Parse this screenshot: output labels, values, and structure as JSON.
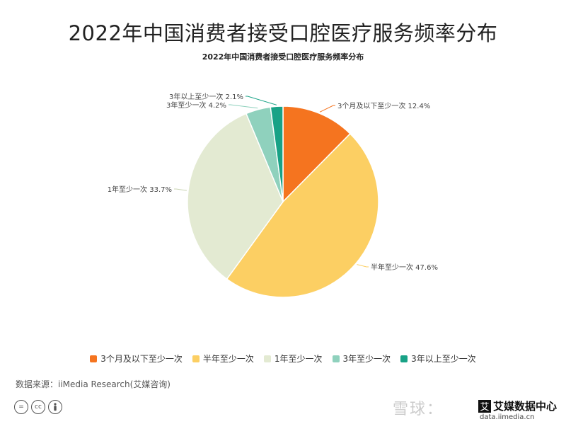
{
  "header": {
    "title": "2022年中国消费者接受口腔医疗服务频率分布"
  },
  "chart_data": {
    "type": "pie",
    "title": "2022年中国消费者接受口腔医疗服务频率分布",
    "categories": [
      "3个月及以下至少一次",
      "半年至少一次",
      "1年至少一次",
      "3年至少一次",
      "3年以上至少一次"
    ],
    "values": [
      12.4,
      47.6,
      33.7,
      4.2,
      2.1
    ],
    "unit": "%",
    "colors": [
      "#f5741f",
      "#fccf63",
      "#e3ead2",
      "#8fd1bd",
      "#18a286"
    ],
    "data_labels": [
      "3个月及以下至少一次 12.4%",
      "半年至少一次 47.6%",
      "1年至少一次 33.7%",
      "3年至少一次 4.2%",
      "3年以上至少一次 2.1%"
    ],
    "legend_position": "bottom"
  },
  "footer": {
    "source": "数据来源：iiMedia Research(艾媒咨询)",
    "license_icons": [
      "=",
      "cc",
      "person-icon"
    ],
    "watermark": "雪球：",
    "logo_text": "艾媒数据中心",
    "logo_sub": "data.iimedia.cn"
  }
}
